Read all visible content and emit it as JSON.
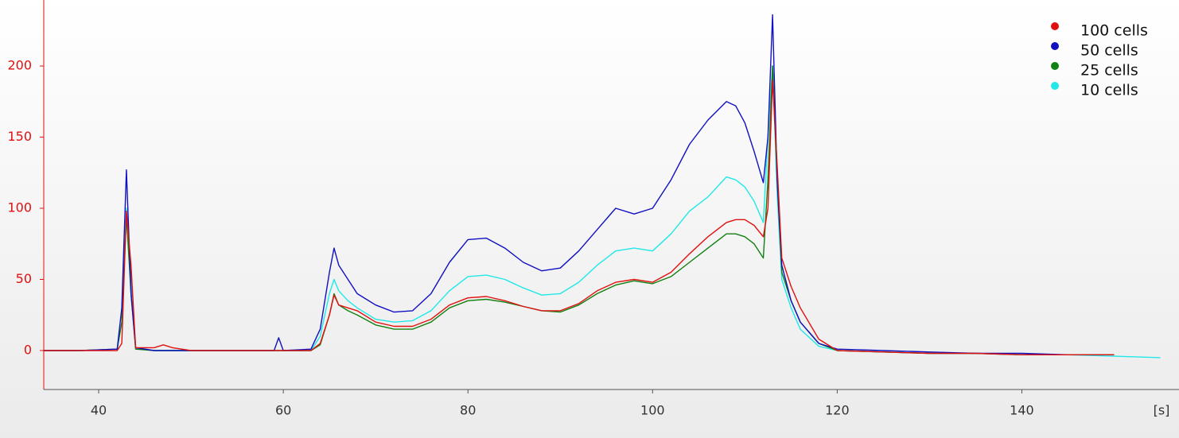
{
  "chart_data": {
    "type": "line",
    "x_label": "[s]",
    "x": [
      34,
      38,
      42,
      42.5,
      43,
      43.5,
      44,
      46,
      47,
      48,
      50,
      55,
      59,
      59.5,
      60,
      63,
      64,
      65,
      65.5,
      66,
      67,
      68,
      70,
      72,
      74,
      76,
      78,
      80,
      82,
      84,
      86,
      88,
      90,
      92,
      94,
      96,
      98,
      100,
      102,
      104,
      106,
      108,
      109,
      110,
      111,
      112,
      112.5,
      113,
      113.5,
      114,
      115,
      116,
      118,
      120,
      125,
      130,
      135,
      140,
      145,
      150,
      155
    ],
    "series": [
      {
        "name": "100 cells",
        "color": "#e01010",
        "values": [
          0,
          0,
          0,
          5,
          98,
          60,
          2,
          2,
          4,
          2,
          0,
          0,
          0,
          0,
          0,
          0,
          5,
          25,
          39,
          32,
          30,
          28,
          20,
          17,
          17,
          22,
          32,
          37,
          38,
          35,
          31,
          28,
          28,
          33,
          42,
          48,
          50,
          48,
          55,
          68,
          80,
          90,
          92,
          92,
          88,
          80,
          100,
          190,
          130,
          65,
          45,
          30,
          8,
          0,
          -1,
          -2,
          -2,
          -3,
          -3,
          -3,
          null
        ]
      },
      {
        "name": "50 cells",
        "color": "#1010c0",
        "values": [
          0,
          0,
          1,
          30,
          127,
          40,
          2,
          0,
          0,
          0,
          0,
          0,
          0,
          9,
          0,
          1,
          15,
          55,
          72,
          60,
          50,
          40,
          32,
          27,
          28,
          40,
          62,
          78,
          79,
          72,
          62,
          56,
          58,
          70,
          85,
          100,
          96,
          100,
          120,
          145,
          162,
          175,
          172,
          160,
          140,
          118,
          150,
          236,
          120,
          60,
          35,
          20,
          5,
          1,
          0,
          -1,
          -2,
          -2,
          -3,
          null,
          null
        ]
      },
      {
        "name": "25 cells",
        "color": "#108010",
        "values": [
          0,
          0,
          1,
          20,
          95,
          40,
          1,
          0,
          0,
          0,
          0,
          0,
          0,
          0,
          0,
          0,
          4,
          25,
          40,
          32,
          28,
          25,
          18,
          15,
          15,
          20,
          30,
          35,
          36,
          34,
          31,
          28,
          27,
          32,
          40,
          46,
          49,
          47,
          52,
          62,
          72,
          82,
          82,
          80,
          75,
          65,
          120,
          200,
          120,
          55,
          35,
          20,
          5,
          0,
          -1,
          -2,
          -2,
          -3,
          -3,
          -3,
          null
        ]
      },
      {
        "name": "10 cells",
        "color": "#20e8e8",
        "values": [
          0,
          0,
          1,
          20,
          100,
          50,
          2,
          0,
          0,
          0,
          0,
          0,
          0,
          0,
          0,
          0,
          10,
          40,
          50,
          42,
          35,
          30,
          22,
          20,
          21,
          28,
          42,
          52,
          53,
          50,
          44,
          39,
          40,
          48,
          60,
          70,
          72,
          70,
          82,
          98,
          108,
          122,
          120,
          115,
          105,
          90,
          150,
          200,
          110,
          50,
          30,
          15,
          3,
          0,
          -1,
          -2,
          -2,
          -3,
          -3,
          -4,
          -5
        ]
      }
    ],
    "xlim": [
      34.05,
      155.3
    ],
    "xticks": [
      40,
      60,
      80,
      100,
      120,
      140
    ],
    "ylim": [
      -27.4,
      246.4
    ],
    "yticks": [
      0,
      50,
      100,
      150,
      200
    ],
    "grid": false,
    "legend": "upper right"
  }
}
